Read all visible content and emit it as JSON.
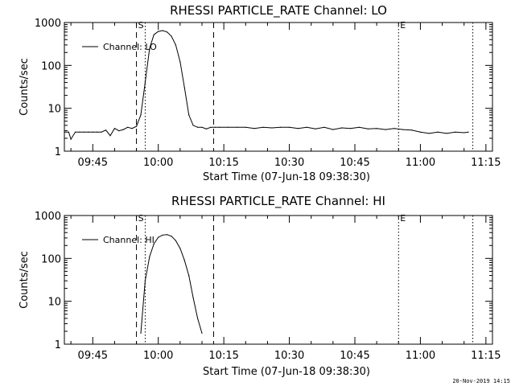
{
  "chart_data": [
    {
      "type": "line",
      "title": "RHESSI PARTICLE_RATE Channel: LO",
      "xlabel": "Start Time (07-Jun-18 09:38:30)",
      "ylabel": "Counts/sec",
      "yscale": "log",
      "ylim": [
        1,
        1000
      ],
      "xlim": [
        "09:38:30",
        "11:16:30"
      ],
      "x_ticks": [
        "09:45",
        "10:00",
        "10:15",
        "10:30",
        "10:45",
        "11:00",
        "11:15"
      ],
      "y_ticks": [
        "1",
        "10",
        "100",
        "1000"
      ],
      "legend": "Channel: LO",
      "legend_position": "upper-left",
      "markers": [
        {
          "label": "S",
          "time": "09:55:00",
          "style": "dashed"
        },
        {
          "label": "",
          "time": "09:57:00",
          "style": "dotted"
        },
        {
          "label": "",
          "time": "10:12:40",
          "style": "dashed"
        },
        {
          "label": "E",
          "time": "10:55:00",
          "style": "dotted"
        },
        {
          "label": "",
          "time": "11:12:00",
          "style": "dotted"
        }
      ],
      "series": [
        {
          "name": "Channel: LO",
          "x": [
            "09:38:30",
            "09:39:30",
            "09:40:00",
            "09:41:00",
            "09:42:00",
            "09:43:00",
            "09:44:00",
            "09:45:00",
            "09:46:00",
            "09:47:00",
            "09:48:00",
            "09:49:00",
            "09:50:00",
            "09:51:00",
            "09:52:00",
            "09:53:00",
            "09:54:00",
            "09:55:00",
            "09:56:00",
            "09:57:00",
            "09:58:00",
            "09:59:00",
            "10:00:00",
            "10:01:00",
            "10:02:00",
            "10:03:00",
            "10:04:00",
            "10:05:00",
            "10:06:00",
            "10:07:00",
            "10:08:00",
            "10:09:00",
            "10:10:00",
            "10:11:00",
            "10:12:00",
            "10:13:00",
            "10:14:00",
            "10:16:00",
            "10:18:00",
            "10:20:00",
            "10:22:00",
            "10:24:00",
            "10:26:00",
            "10:28:00",
            "10:30:00",
            "10:32:00",
            "10:34:00",
            "10:36:00",
            "10:38:00",
            "10:40:00",
            "10:42:00",
            "10:44:00",
            "10:46:00",
            "10:48:00",
            "10:50:00",
            "10:52:00",
            "10:54:00",
            "10:56:00",
            "10:58:00",
            "11:00:00",
            "11:02:00",
            "11:04:00",
            "11:06:00",
            "11:08:00",
            "11:10:00",
            "11:11:00"
          ],
          "y": [
            2.8,
            2.8,
            1.9,
            2.8,
            2.8,
            2.8,
            2.8,
            2.8,
            2.8,
            2.8,
            3.1,
            2.3,
            3.4,
            3.0,
            3.2,
            3.6,
            3.4,
            3.8,
            7,
            40,
            250,
            520,
            620,
            650,
            600,
            480,
            300,
            120,
            30,
            7,
            4,
            3.6,
            3.6,
            3.3,
            3.6,
            3.6,
            3.6,
            3.6,
            3.6,
            3.6,
            3.4,
            3.6,
            3.5,
            3.6,
            3.6,
            3.4,
            3.6,
            3.3,
            3.6,
            3.2,
            3.5,
            3.4,
            3.6,
            3.3,
            3.4,
            3.2,
            3.4,
            3.2,
            3.1,
            2.8,
            2.6,
            2.8,
            2.6,
            2.8,
            2.7,
            2.8
          ]
        }
      ]
    },
    {
      "type": "line",
      "title": "RHESSI PARTICLE_RATE Channel: HI",
      "xlabel": "Start Time (07-Jun-18 09:38:30)",
      "ylabel": "Counts/sec",
      "yscale": "log",
      "ylim": [
        1,
        1000
      ],
      "xlim": [
        "09:38:30",
        "11:16:30"
      ],
      "x_ticks": [
        "09:45",
        "10:00",
        "10:15",
        "10:30",
        "10:45",
        "11:00",
        "11:15"
      ],
      "y_ticks": [
        "1",
        "10",
        "100",
        "1000"
      ],
      "legend": "Channel: HI",
      "legend_position": "upper-left",
      "markers": [
        {
          "label": "S",
          "time": "09:55:00",
          "style": "dashed"
        },
        {
          "label": "",
          "time": "09:57:00",
          "style": "dotted"
        },
        {
          "label": "",
          "time": "10:12:40",
          "style": "dashed"
        },
        {
          "label": "E",
          "time": "10:55:00",
          "style": "dotted"
        },
        {
          "label": "",
          "time": "11:12:00",
          "style": "dotted"
        }
      ],
      "series": [
        {
          "name": "Channel: HI",
          "x": [
            "09:56:00",
            "09:57:00",
            "09:58:00",
            "09:59:00",
            "10:00:00",
            "10:01:00",
            "10:02:00",
            "10:03:00",
            "10:04:00",
            "10:05:00",
            "10:06:00",
            "10:07:00",
            "10:08:00",
            "10:09:00",
            "10:10:00"
          ],
          "y": [
            1.8,
            30,
            110,
            220,
            310,
            350,
            360,
            330,
            260,
            170,
            90,
            40,
            12,
            4,
            1.8
          ]
        }
      ]
    }
  ],
  "footer": {
    "timestamp": "20-Nov-2019 14:15"
  }
}
